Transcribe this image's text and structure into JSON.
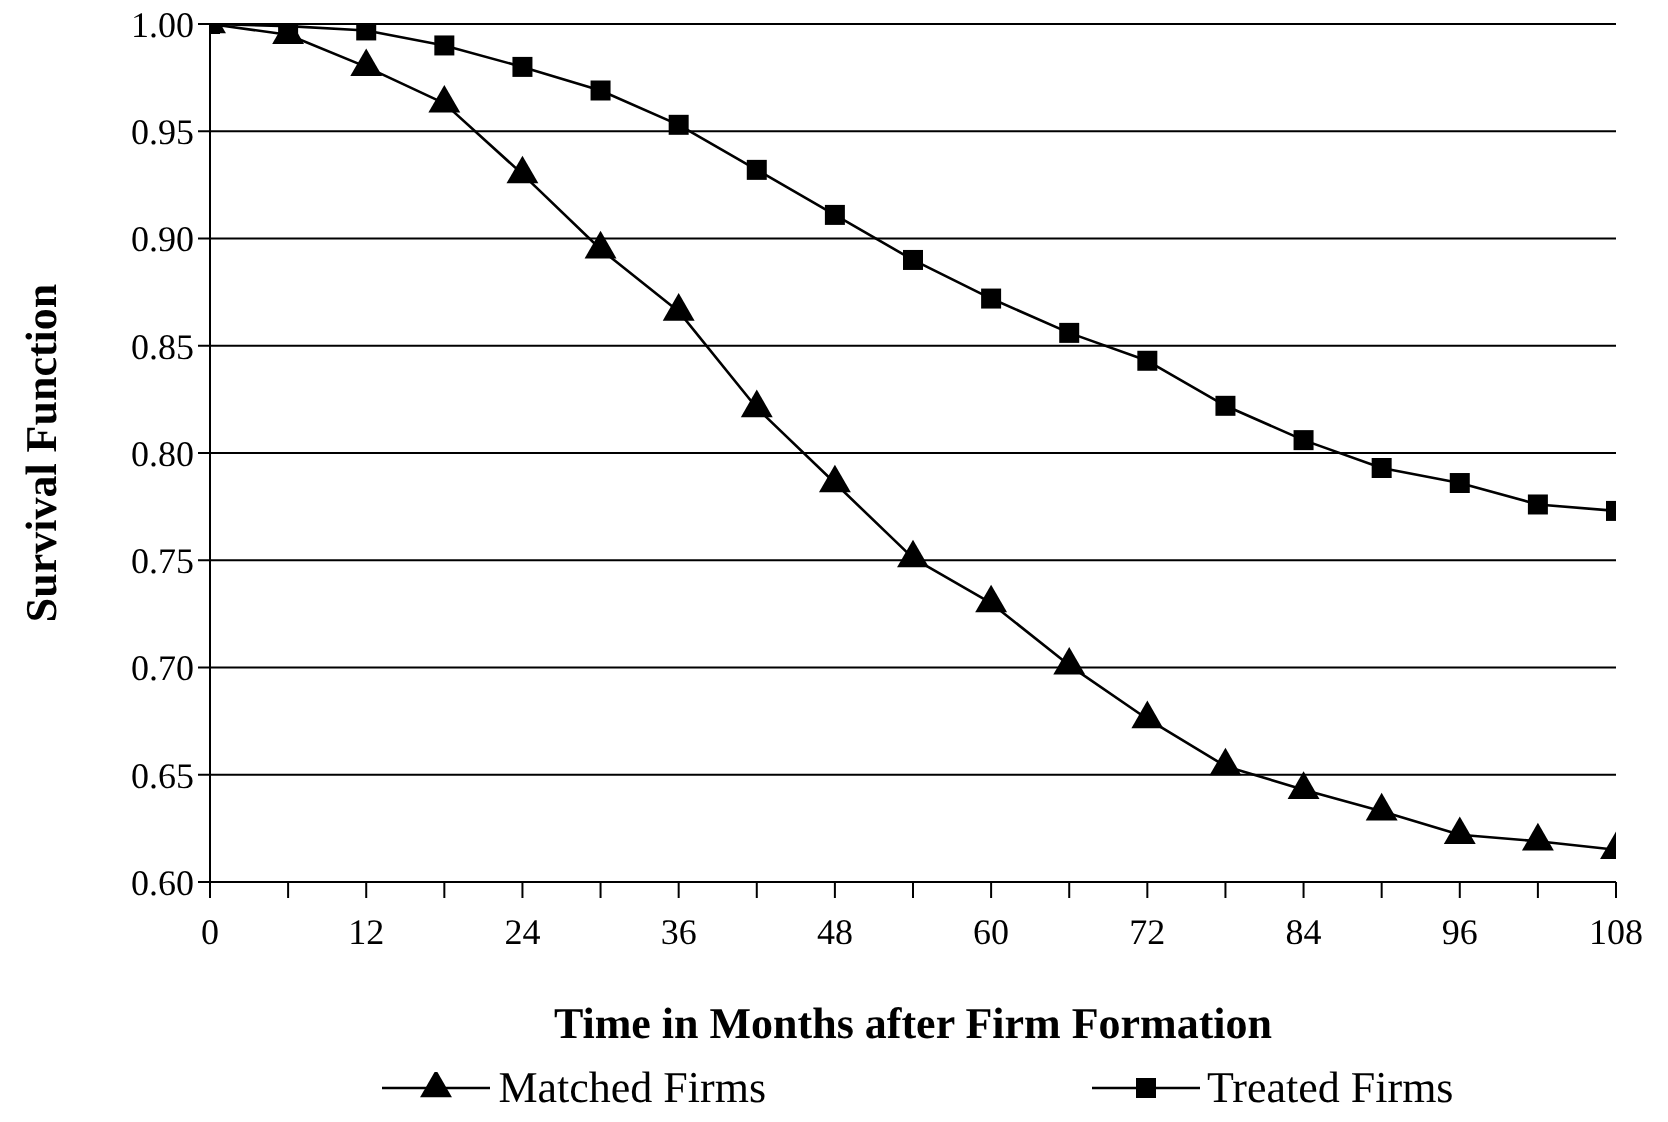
{
  "chart_data": {
    "type": "line",
    "xlabel": "Time in Months after Firm Formation",
    "ylabel": "Survival Function",
    "x": [
      0,
      6,
      12,
      18,
      24,
      30,
      36,
      42,
      48,
      54,
      60,
      66,
      72,
      78,
      84,
      90,
      96,
      102,
      108
    ],
    "series": [
      {
        "name": "Matched Firms",
        "color": "#000000",
        "marker": "triangle",
        "values": [
          1.0,
          0.995,
          0.98,
          0.963,
          0.93,
          0.895,
          0.866,
          0.821,
          0.786,
          0.751,
          0.73,
          0.701,
          0.676,
          0.654,
          0.643,
          0.633,
          0.622,
          0.619,
          0.615
        ]
      },
      {
        "name": "Treated Firms",
        "color": "#000000",
        "marker": "square",
        "values": [
          1.0,
          0.999,
          0.997,
          0.99,
          0.98,
          0.969,
          0.953,
          0.932,
          0.911,
          0.89,
          0.872,
          0.856,
          0.843,
          0.822,
          0.806,
          0.793,
          0.786,
          0.776,
          0.773
        ]
      }
    ],
    "xlim": [
      0,
      108
    ],
    "xticks": [
      0,
      {
        "value": 6,
        "label": null
      },
      12,
      {
        "value": 18,
        "label": null
      },
      24,
      {
        "value": 30,
        "label": null
      },
      36,
      {
        "value": 42,
        "label": null
      },
      48,
      {
        "value": 54,
        "label": null
      },
      60,
      {
        "value": 66,
        "label": null
      },
      72,
      {
        "value": 78,
        "label": null
      },
      84,
      {
        "value": 90,
        "label": null
      },
      96,
      {
        "value": 102,
        "label": null
      },
      108
    ],
    "ylim": [
      0.6,
      1.0
    ],
    "yticks": [
      {
        "value": 0.6,
        "label": "0.60"
      },
      {
        "value": 0.65,
        "label": "0.65"
      },
      {
        "value": 0.7,
        "label": "0.70"
      },
      {
        "value": 0.75,
        "label": "0.75"
      },
      {
        "value": 0.8,
        "label": "0.80"
      },
      {
        "value": 0.85,
        "label": "0.85"
      },
      {
        "value": 0.9,
        "label": "0.90"
      },
      {
        "value": 0.95,
        "label": "0.95"
      },
      {
        "value": 1.0,
        "label": "1.00"
      }
    ],
    "grid": "y",
    "legend": "bottom",
    "line_style": "solid"
  }
}
